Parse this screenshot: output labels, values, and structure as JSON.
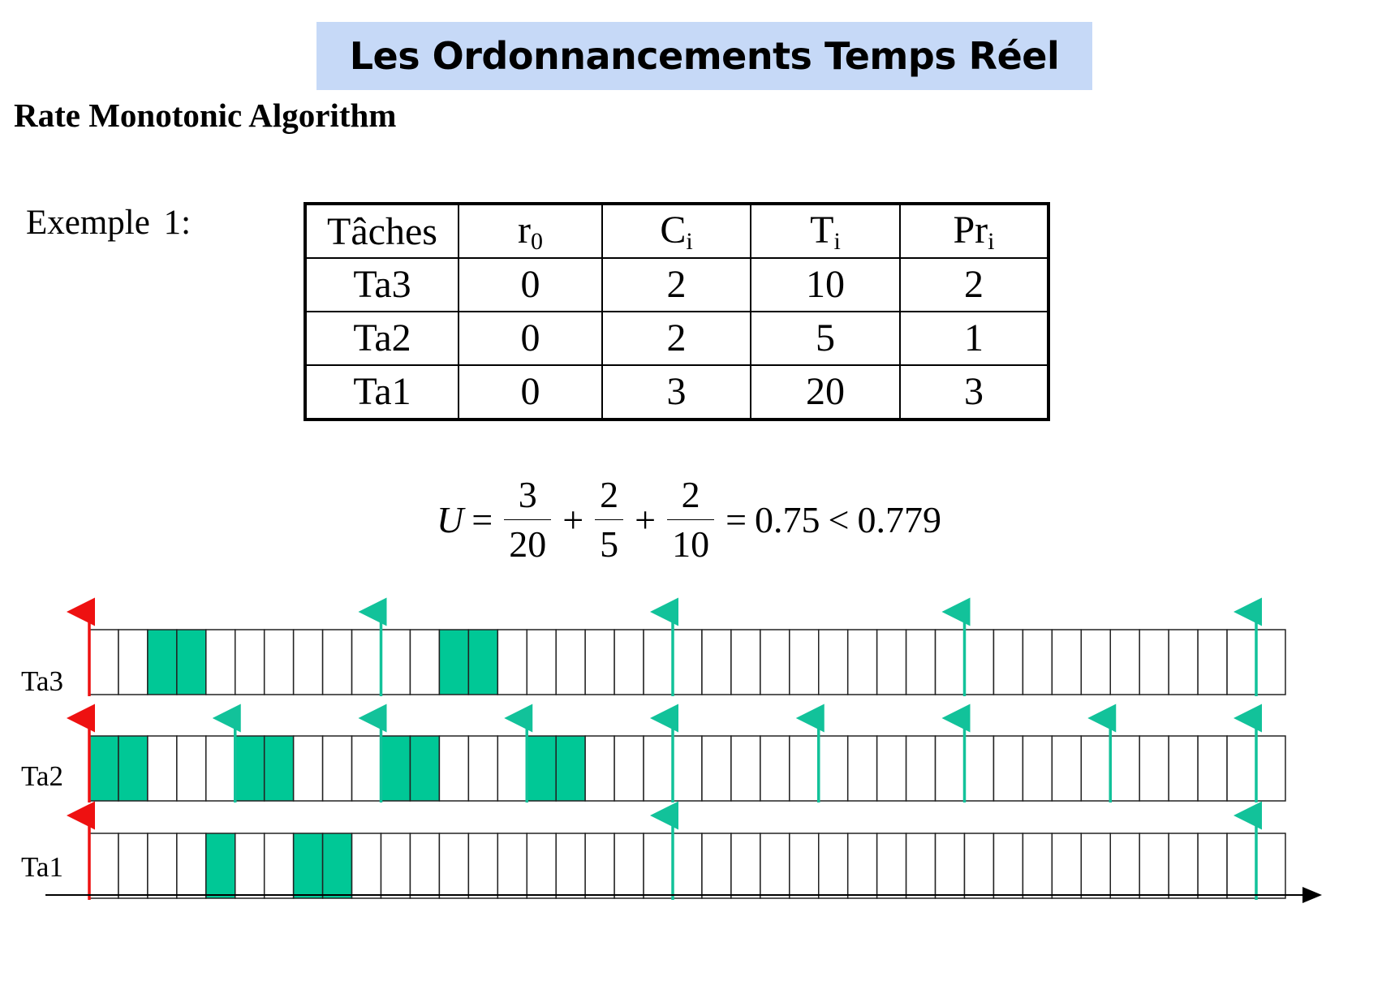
{
  "header": {
    "title": "Les Ordonnancements Temps Réel",
    "subtitle": "Rate Monotonic Algorithm"
  },
  "example_label": "Exemple 1:",
  "table": {
    "headers": [
      {
        "base": "Tâches",
        "sub": ""
      },
      {
        "base": "r",
        "sub": "0"
      },
      {
        "base": "C",
        "sub": "i"
      },
      {
        "base": "T",
        "sub": "i"
      },
      {
        "base": "Pr",
        "sub": "i"
      }
    ],
    "rows": [
      [
        "Ta3",
        "0",
        "2",
        "10",
        "2"
      ],
      [
        "Ta2",
        "0",
        "2",
        "5",
        "1"
      ],
      [
        "Ta1",
        "0",
        "3",
        "20",
        "3"
      ]
    ]
  },
  "formula": {
    "lhs": "U",
    "eq": "=",
    "plus": "+",
    "terms": [
      {
        "num": "3",
        "den": "20"
      },
      {
        "num": "2",
        "den": "5"
      },
      {
        "num": "2",
        "den": "10"
      }
    ],
    "result": "0.75",
    "lt": "<",
    "bound": "0.779"
  },
  "timeline": {
    "slots": 41,
    "rows": [
      {
        "name": "Ta3",
        "busy": [
          2,
          3,
          12,
          13
        ],
        "arrivals": [
          0,
          10,
          20,
          30,
          40
        ]
      },
      {
        "name": "Ta2",
        "busy": [
          0,
          1,
          5,
          6,
          10,
          11,
          15,
          16
        ],
        "arrivals": [
          0,
          5,
          10,
          15,
          20,
          25,
          30,
          35,
          40
        ]
      },
      {
        "name": "Ta1",
        "busy": [
          4,
          7,
          8
        ],
        "arrivals": [
          0,
          20,
          40
        ]
      }
    ],
    "colors": {
      "busy": "#00c896",
      "initial_arrival": "#ee1111",
      "arrival": "#12c29a",
      "slot_border": "#222222"
    }
  }
}
